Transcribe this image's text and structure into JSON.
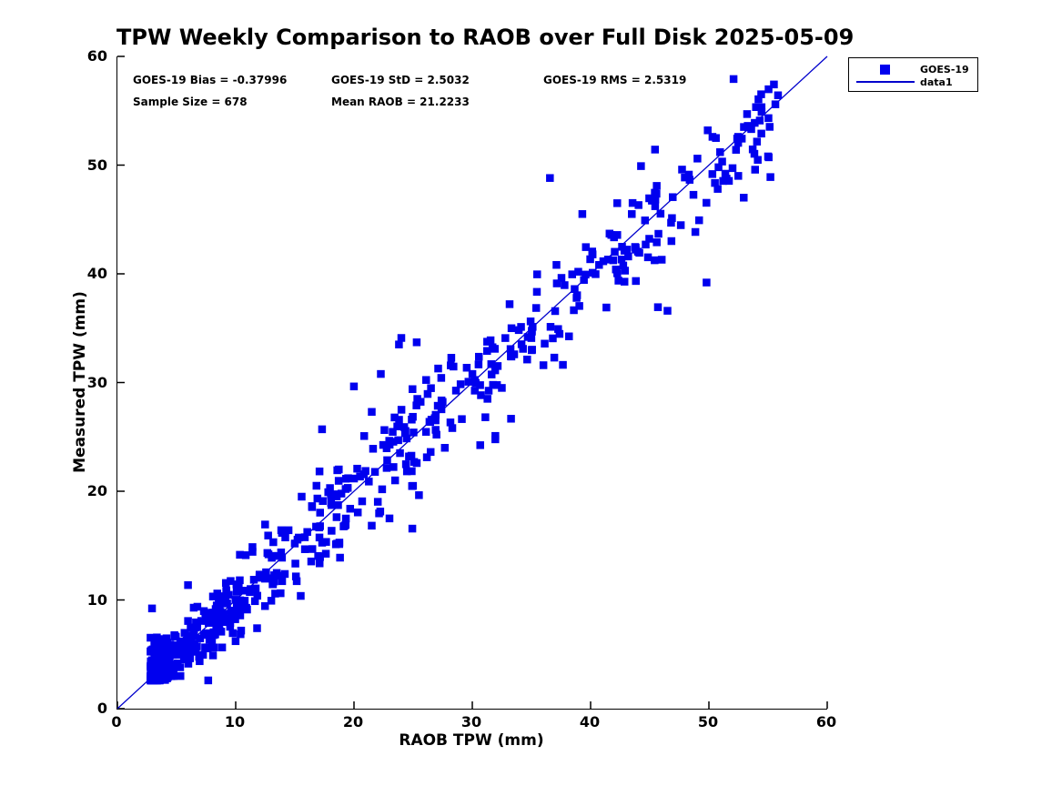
{
  "title": "TPW Weekly Comparison to RAOB over Full Disk 2025-05-09",
  "stats": {
    "bias": "GOES-19 Bias = -0.37996",
    "std": "GOES-19 StD = 2.5032",
    "rms": "GOES-19 RMS = 2.5319",
    "sample_size": "Sample Size = 678",
    "mean_raob": "Mean RAOB = 21.2233"
  },
  "colors": {
    "marker": "#0000EE",
    "line": "#0000CC",
    "axis": "#000000",
    "text": "#000000",
    "background": "#ffffff"
  },
  "chart_data": {
    "type": "scatter",
    "title": "TPW Weekly Comparison to RAOB over Full Disk 2025-05-09",
    "xlabel": "RAOB TPW (mm)",
    "ylabel": "Measured TPW (mm)",
    "xlim": [
      0,
      60
    ],
    "ylim": [
      0,
      60
    ],
    "x_ticks": [
      0,
      10,
      20,
      30,
      40,
      50,
      60
    ],
    "y_ticks": [
      0,
      10,
      20,
      30,
      40,
      50,
      60
    ],
    "grid": false,
    "legend_position": "top-right-outside",
    "series": [
      {
        "name": "GOES-19",
        "type": "scatter",
        "marker": "filled-square",
        "color": "#0000EE",
        "n_points": 678,
        "stats": {
          "bias": -0.37996,
          "std": 2.5032,
          "rms": 2.5319,
          "sample_size": 678,
          "mean_raob": 21.2233
        },
        "distribution_note": "678 points hugging the y=x line from (3,3) to (56,54); very dense for x<22, moderate 22-40, sparse above 40; vertical scatter about +/-2.5 mm; approximated by the seeded generator below plus the explicitly read outlier points",
        "generator": {
          "seed": 20250509,
          "n": 663,
          "x_min": 2.8,
          "x_max": 56,
          "x_shape": 2.0,
          "bias": -0.38,
          "low_x_lift": 0.8,
          "noise_std": 2.5,
          "noise_floor": 0.35,
          "noise_knee": 30,
          "outlier_rate": 0.035,
          "outlier_scale": 2.3,
          "y_min": 2.6,
          "y_max": 59
        },
        "outlier_points": [
          [
            24.0,
            34.1
          ],
          [
            25.3,
            33.7
          ],
          [
            23.8,
            33.5
          ],
          [
            17.3,
            25.7
          ],
          [
            21.5,
            27.3
          ],
          [
            46.5,
            36.6
          ],
          [
            49.8,
            39.2
          ],
          [
            39.3,
            45.5
          ],
          [
            41.6,
            43.7
          ],
          [
            49.9,
            53.2
          ],
          [
            50.3,
            52.6
          ],
          [
            54.3,
            54.1
          ],
          [
            55.0,
            50.8
          ],
          [
            55.2,
            48.9
          ],
          [
            23.0,
            17.5
          ]
        ]
      },
      {
        "name": "data1",
        "type": "line",
        "color": "#0000CC",
        "from": [
          0,
          0
        ],
        "to": [
          60,
          60
        ]
      }
    ]
  }
}
